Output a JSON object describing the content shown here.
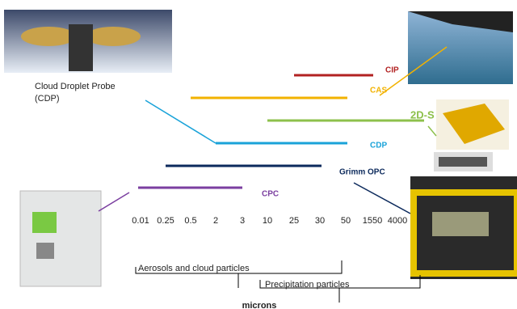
{
  "caption": {
    "line1": "Cloud Droplet Probe",
    "line2": "(CDP)"
  },
  "instruments": [
    {
      "label": "CIP",
      "color": "#b22222"
    },
    {
      "label": "CAS",
      "color": "#f2b200"
    },
    {
      "label": "2D-S",
      "color": "#8dc04b"
    },
    {
      "label": "CDP",
      "color": "#1aa3d9"
    },
    {
      "label": "Grimm OPC",
      "color": "#0c2a5c"
    },
    {
      "label": "CPC",
      "color": "#7b3fa0"
    }
  ],
  "axis": {
    "ticks": [
      "0.01",
      "0.25",
      "0.5",
      "2",
      "3",
      "10",
      "25",
      "30",
      "50",
      "1550",
      "4000"
    ],
    "unit": "microns"
  },
  "brackets": [
    {
      "label": "Aerosols and cloud particles"
    },
    {
      "label": "Precipitation particles"
    }
  ]
}
